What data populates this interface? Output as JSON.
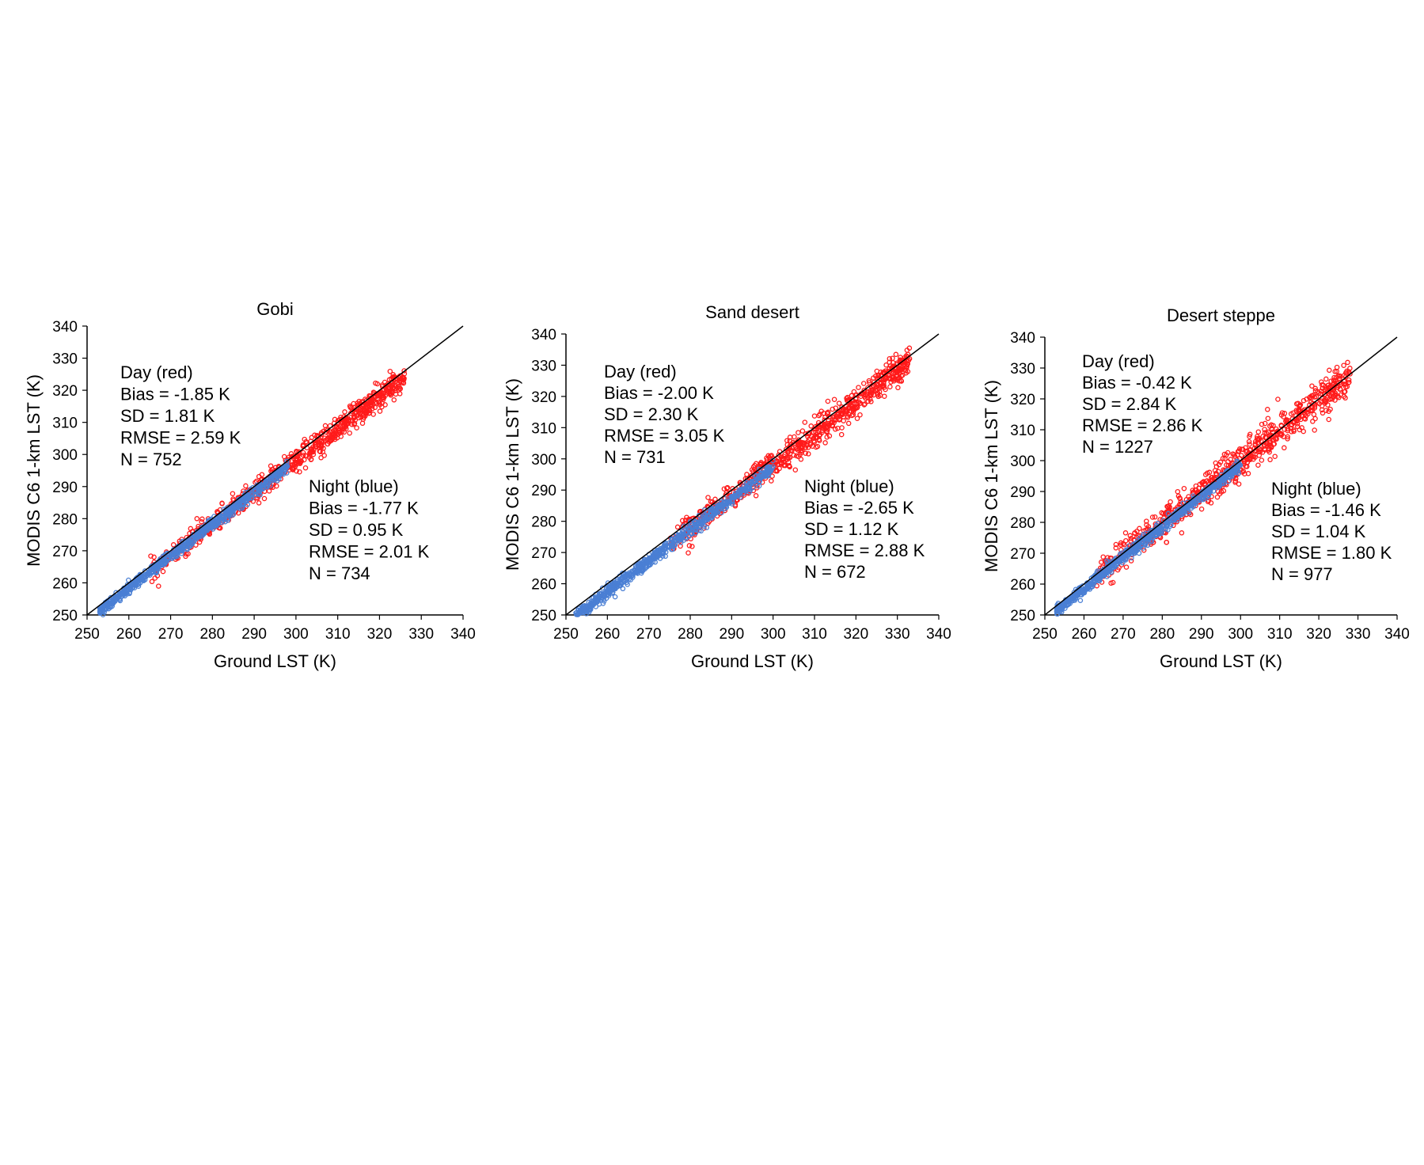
{
  "colors": {
    "day": "#ff1a1a",
    "night": "#4a7fd4",
    "line": "#000000"
  },
  "chart_data": [
    {
      "type": "scatter",
      "title": "Gobi",
      "xlabel": "Ground LST (K)",
      "ylabel": "MODIS C6 1-km LST (K)",
      "xlim": [
        250,
        340
      ],
      "ylim": [
        250,
        340
      ],
      "xticks": [
        "250",
        "260",
        "270",
        "280",
        "290",
        "300",
        "310",
        "320",
        "330",
        "340"
      ],
      "yticks": [
        "250",
        "260",
        "270",
        "280",
        "290",
        "300",
        "310",
        "320",
        "330",
        "340"
      ],
      "reference_line": "1:1",
      "series": [
        {
          "name": "Day (red)",
          "color": "#ff1a1a",
          "x_range": [
            265,
            326
          ],
          "bias": -1.85,
          "sd": 1.81,
          "n": 752
        },
        {
          "name": "Night (blue)",
          "color": "#4a7fd4",
          "x_range": [
            253,
            298
          ],
          "bias": -1.77,
          "sd": 0.95,
          "n": 734
        }
      ],
      "annotations": {
        "day": [
          "Day (red)",
          "Bias = -1.85 K",
          "SD = 1.81 K",
          "RMSE = 2.59 K",
          "N = 752"
        ],
        "night": [
          "Night (blue)",
          "Bias = -1.77 K",
          "SD = 0.95 K",
          "RMSE = 2.01 K",
          "N = 734"
        ]
      }
    },
    {
      "type": "scatter",
      "title": "Sand desert",
      "xlabel": "Ground LST (K)",
      "ylabel": "MODIS C6 1-km LST (K)",
      "xlim": [
        250,
        340
      ],
      "ylim": [
        250,
        340
      ],
      "xticks": [
        "250",
        "260",
        "270",
        "280",
        "290",
        "300",
        "310",
        "320",
        "330",
        "340"
      ],
      "yticks": [
        "250",
        "260",
        "270",
        "280",
        "290",
        "300",
        "310",
        "320",
        "330",
        "340"
      ],
      "reference_line": "1:1",
      "series": [
        {
          "name": "Day (red)",
          "color": "#ff1a1a",
          "x_range": [
            275,
            333
          ],
          "bias": -2.0,
          "sd": 2.3,
          "n": 731
        },
        {
          "name": "Night (blue)",
          "color": "#4a7fd4",
          "x_range": [
            252,
            300
          ],
          "bias": -2.65,
          "sd": 1.12,
          "n": 672
        }
      ],
      "annotations": {
        "day": [
          "Day (red)",
          "Bias = -2.00 K",
          "SD = 2.30 K",
          "RMSE = 3.05 K",
          "N = 731"
        ],
        "night": [
          "Night (blue)",
          "Bias = -2.65 K",
          "SD = 1.12 K",
          "RMSE = 2.88 K",
          "N = 672"
        ]
      }
    },
    {
      "type": "scatter",
      "title": "Desert steppe",
      "xlabel": "Ground LST (K)",
      "ylabel": "MODIS C6 1-km LST (K)",
      "xlim": [
        250,
        340
      ],
      "ylim": [
        250,
        340
      ],
      "xticks": [
        "250",
        "260",
        "270",
        "280",
        "290",
        "300",
        "310",
        "320",
        "330",
        "340"
      ],
      "yticks": [
        "250",
        "260",
        "270",
        "280",
        "290",
        "300",
        "310",
        "320",
        "330",
        "340"
      ],
      "reference_line": "1:1",
      "series": [
        {
          "name": "Day (red)",
          "color": "#ff1a1a",
          "x_range": [
            263,
            328
          ],
          "bias": -0.42,
          "sd": 2.84,
          "n": 1227
        },
        {
          "name": "Night (blue)",
          "color": "#4a7fd4",
          "x_range": [
            253,
            300
          ],
          "bias": -1.46,
          "sd": 1.04,
          "n": 977
        }
      ],
      "annotations": {
        "day": [
          "Day (red)",
          "Bias = -0.42 K",
          "SD = 2.84 K",
          "RMSE = 2.86 K",
          "N = 1227"
        ],
        "night": [
          "Night (blue)",
          "Bias = -1.46 K",
          "SD = 1.04 K",
          "RMSE = 1.80 K",
          "N = 977"
        ]
      }
    }
  ]
}
